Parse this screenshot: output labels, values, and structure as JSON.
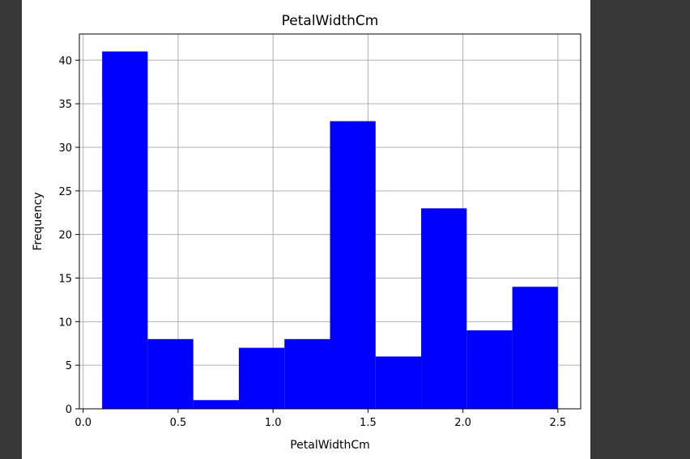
{
  "colors": {
    "background": "#383838",
    "figure": "#ffffff",
    "bar": "#0000ff",
    "grid": "#b0b0b0"
  },
  "chart_data": {
    "type": "bar",
    "title": "PetalWidthCm",
    "xlabel": "PetalWidthCm",
    "ylabel": "Frequency",
    "xlim": [
      -0.02,
      2.62
    ],
    "ylim": [
      0,
      43
    ],
    "grid": true,
    "bins": [
      {
        "start": 0.1,
        "end": 0.34,
        "count": 41
      },
      {
        "start": 0.34,
        "end": 0.58,
        "count": 8
      },
      {
        "start": 0.58,
        "end": 0.82,
        "count": 1
      },
      {
        "start": 0.82,
        "end": 1.06,
        "count": 7
      },
      {
        "start": 1.06,
        "end": 1.3,
        "count": 8
      },
      {
        "start": 1.3,
        "end": 1.54,
        "count": 33
      },
      {
        "start": 1.54,
        "end": 1.78,
        "count": 6
      },
      {
        "start": 1.78,
        "end": 2.02,
        "count": 23
      },
      {
        "start": 2.02,
        "end": 2.26,
        "count": 9
      },
      {
        "start": 2.26,
        "end": 2.5,
        "count": 14
      }
    ],
    "x_ticks": [
      {
        "value": 0.0,
        "label": "0.0"
      },
      {
        "value": 0.5,
        "label": "0.5"
      },
      {
        "value": 1.0,
        "label": "1.0"
      },
      {
        "value": 1.5,
        "label": "1.5"
      },
      {
        "value": 2.0,
        "label": "2.0"
      },
      {
        "value": 2.5,
        "label": "2.5"
      }
    ],
    "y_ticks": [
      {
        "value": 0,
        "label": "0"
      },
      {
        "value": 5,
        "label": "5"
      },
      {
        "value": 10,
        "label": "10"
      },
      {
        "value": 15,
        "label": "15"
      },
      {
        "value": 20,
        "label": "20"
      },
      {
        "value": 25,
        "label": "25"
      },
      {
        "value": 30,
        "label": "30"
      },
      {
        "value": 35,
        "label": "35"
      },
      {
        "value": 40,
        "label": "40"
      }
    ]
  }
}
